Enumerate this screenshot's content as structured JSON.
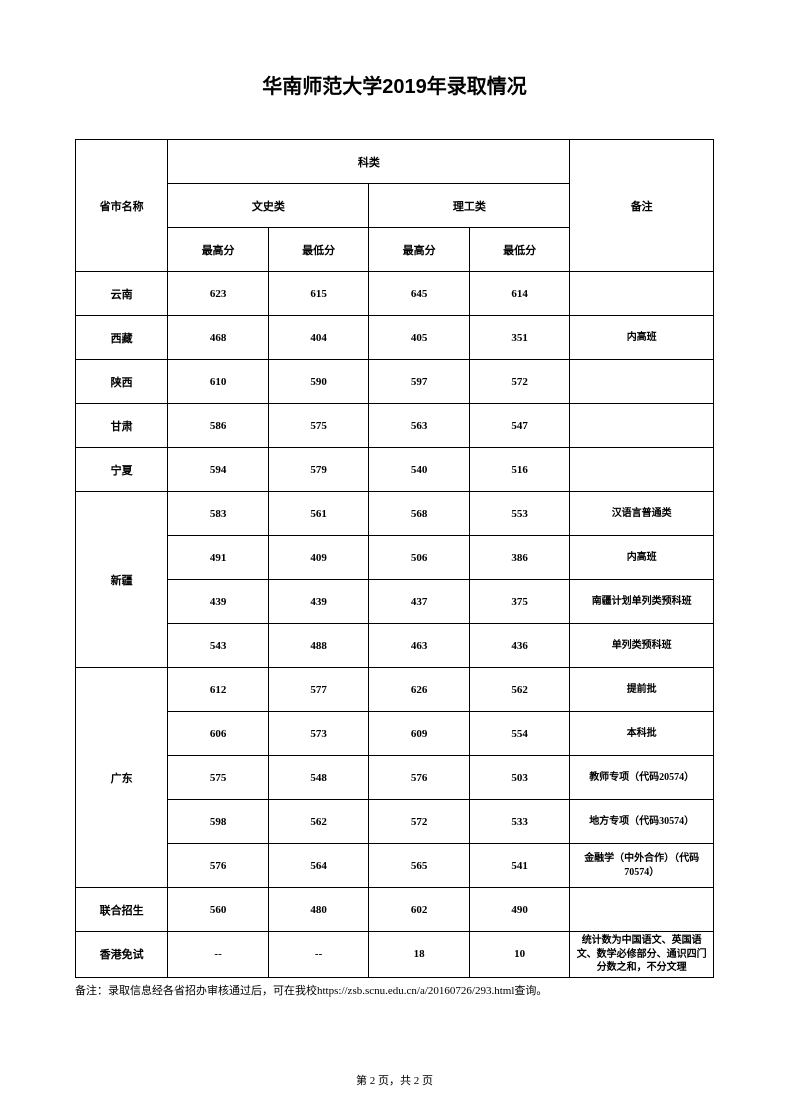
{
  "title": "华南师范大学2019年录取情况",
  "headers": {
    "province": "省市名称",
    "category": "科类",
    "liberal": "文史类",
    "science": "理工类",
    "max": "最高分",
    "min": "最低分",
    "note": "备注"
  },
  "rows": [
    {
      "province": "云南",
      "span": 1,
      "lmax": "623",
      "lmin": "615",
      "smax": "645",
      "smin": "614",
      "note": ""
    },
    {
      "province": "西藏",
      "span": 1,
      "lmax": "468",
      "lmin": "404",
      "smax": "405",
      "smin": "351",
      "note": "内高班"
    },
    {
      "province": "陕西",
      "span": 1,
      "lmax": "610",
      "lmin": "590",
      "smax": "597",
      "smin": "572",
      "note": ""
    },
    {
      "province": "甘肃",
      "span": 1,
      "lmax": "586",
      "lmin": "575",
      "smax": "563",
      "smin": "547",
      "note": ""
    },
    {
      "province": "宁夏",
      "span": 1,
      "lmax": "594",
      "lmin": "579",
      "smax": "540",
      "smin": "516",
      "note": ""
    },
    {
      "province": "新疆",
      "span": 4,
      "lmax": "583",
      "lmin": "561",
      "smax": "568",
      "smin": "553",
      "note": "汉语言普通类"
    },
    {
      "province": "",
      "span": 0,
      "lmax": "491",
      "lmin": "409",
      "smax": "506",
      "smin": "386",
      "note": "内高班"
    },
    {
      "province": "",
      "span": 0,
      "lmax": "439",
      "lmin": "439",
      "smax": "437",
      "smin": "375",
      "note": "南疆计划单列类预科班"
    },
    {
      "province": "",
      "span": 0,
      "lmax": "543",
      "lmin": "488",
      "smax": "463",
      "smin": "436",
      "note": "单列类预科班"
    },
    {
      "province": "广东",
      "span": 5,
      "lmax": "612",
      "lmin": "577",
      "smax": "626",
      "smin": "562",
      "note": "提前批"
    },
    {
      "province": "",
      "span": 0,
      "lmax": "606",
      "lmin": "573",
      "smax": "609",
      "smin": "554",
      "note": "本科批"
    },
    {
      "province": "",
      "span": 0,
      "lmax": "575",
      "lmin": "548",
      "smax": "576",
      "smin": "503",
      "note": "教师专项（代码20574）"
    },
    {
      "province": "",
      "span": 0,
      "lmax": "598",
      "lmin": "562",
      "smax": "572",
      "smin": "533",
      "note": "地方专项（代码30574）"
    },
    {
      "province": "",
      "span": 0,
      "lmax": "576",
      "lmin": "564",
      "smax": "565",
      "smin": "541",
      "note": "金融学（中外合作）（代码70574）"
    },
    {
      "province": "联合招生",
      "span": 1,
      "lmax": "560",
      "lmin": "480",
      "smax": "602",
      "smin": "490",
      "note": ""
    },
    {
      "province": "香港免试",
      "span": 1,
      "lmax": "--",
      "lmin": "--",
      "smax": "18",
      "smin": "10",
      "note": "统计数为中国语文、英国语文、数学必修部分、通识四门分数之和，不分文理"
    }
  ],
  "footnote": "备注：录取信息经各省招办审核通过后，可在我校https://zsb.scnu.edu.cn/a/20160726/293.html查询。",
  "pager": "第 2 页，共 2 页"
}
